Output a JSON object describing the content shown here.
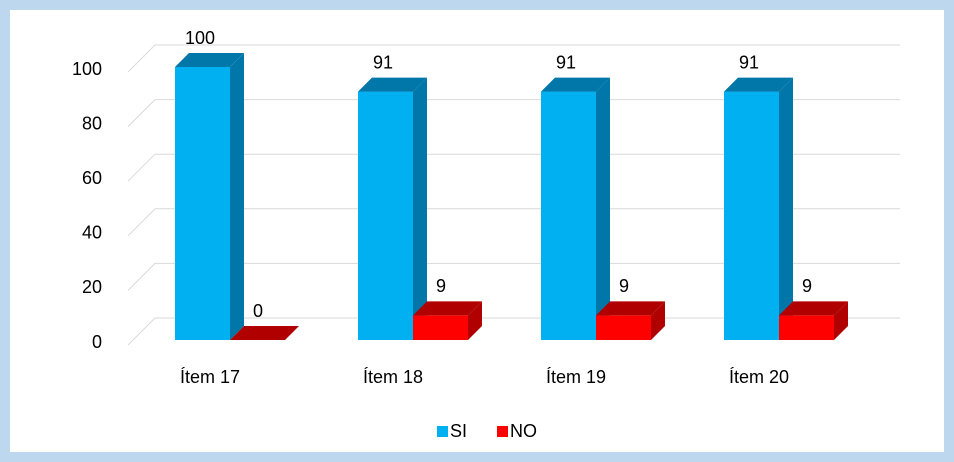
{
  "chart_data": {
    "type": "bar3d",
    "categories": [
      "Ítem 17",
      "Ítem 18",
      "Ítem 19",
      "Ítem 20"
    ],
    "series": [
      {
        "name": "SI",
        "color": "#00b0f0",
        "side": "#0077a8",
        "values": [
          100,
          91,
          91,
          91
        ]
      },
      {
        "name": "NO",
        "color": "#ff0000",
        "side": "#b00000",
        "values": [
          0,
          9,
          9,
          9
        ]
      }
    ],
    "ylim": [
      0,
      100
    ],
    "yticks": [
      0,
      20,
      40,
      60,
      80,
      100
    ],
    "grid": true
  }
}
